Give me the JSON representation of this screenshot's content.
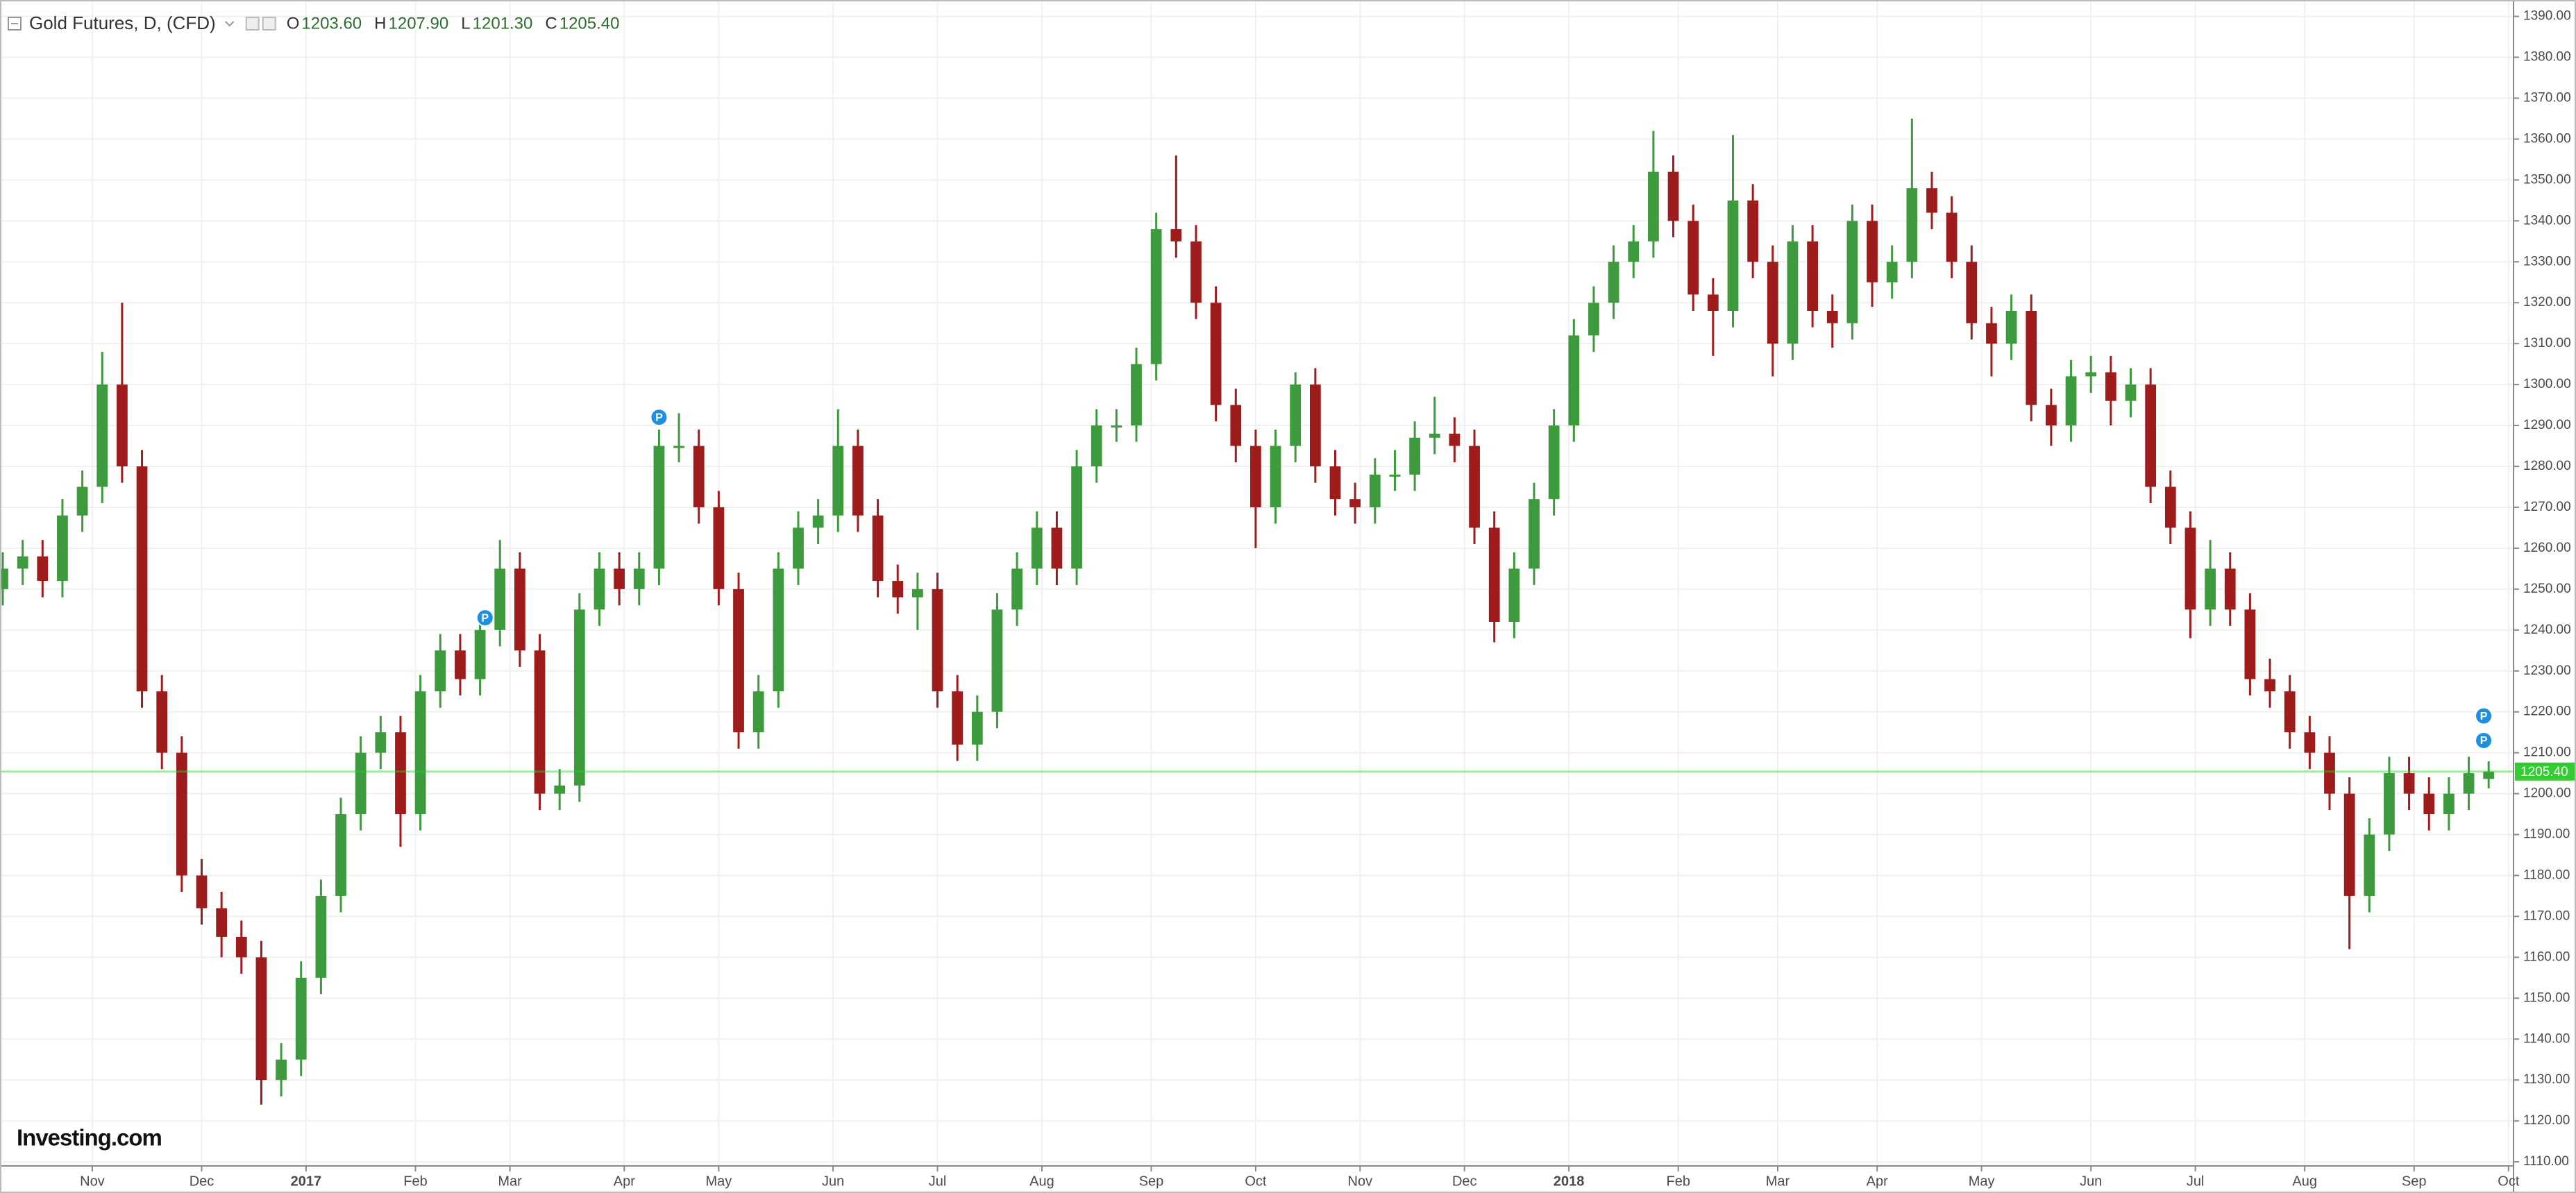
{
  "chart_data": {
    "type": "candlestick",
    "title": "Gold Futures, D, (CFD)",
    "legend_values": [
      {
        "key": "O",
        "value": 1203.6,
        "label": "1203.60"
      },
      {
        "key": "H",
        "value": 1207.9,
        "label": "1207.90"
      },
      {
        "key": "L",
        "value": 1201.3,
        "label": "1201.30"
      },
      {
        "key": "C",
        "value": 1205.4,
        "label": "1205.40"
      }
    ],
    "logo": "Investing.com",
    "up_color": "#3d9a3d",
    "down_color": "#9e1c1c",
    "last_price_color": "#33cc33",
    "last_price": {
      "value": 1205.4,
      "label": "1205.40"
    },
    "grid": true,
    "xlim": [
      0,
      505
    ],
    "xticks": [
      {
        "value": 18,
        "label": "Nov"
      },
      {
        "value": 40,
        "label": "Dec"
      },
      {
        "value": 61,
        "label": "2017"
      },
      {
        "value": 83,
        "label": "Feb"
      },
      {
        "value": 102,
        "label": "Mar"
      },
      {
        "value": 125,
        "label": "Apr"
      },
      {
        "value": 144,
        "label": "May"
      },
      {
        "value": 167,
        "label": "Jun"
      },
      {
        "value": 188,
        "label": "Jul"
      },
      {
        "value": 209,
        "label": "Aug"
      },
      {
        "value": 231,
        "label": "Sep"
      },
      {
        "value": 252,
        "label": "Oct"
      },
      {
        "value": 273,
        "label": "Nov"
      },
      {
        "value": 294,
        "label": "Dec"
      },
      {
        "value": 315,
        "label": "2018"
      },
      {
        "value": 337,
        "label": "Feb"
      },
      {
        "value": 357,
        "label": "Mar"
      },
      {
        "value": 377,
        "label": "Apr"
      },
      {
        "value": 398,
        "label": "May"
      },
      {
        "value": 420,
        "label": "Jun"
      },
      {
        "value": 441,
        "label": "Jul"
      },
      {
        "value": 463,
        "label": "Aug"
      },
      {
        "value": 485,
        "label": "Sep"
      },
      {
        "value": 504,
        "label": "Oct"
      }
    ],
    "ylim": [
      1109,
      1394
    ],
    "yticks": [
      {
        "value": 1110,
        "label": "1110.00"
      },
      {
        "value": 1120,
        "label": "1120.00"
      },
      {
        "value": 1130,
        "label": "1130.00"
      },
      {
        "value": 1140,
        "label": "1140.00"
      },
      {
        "value": 1150,
        "label": "1150.00"
      },
      {
        "value": 1160,
        "label": "1160.00"
      },
      {
        "value": 1170,
        "label": "1170.00"
      },
      {
        "value": 1180,
        "label": "1180.00"
      },
      {
        "value": 1190,
        "label": "1190.00"
      },
      {
        "value": 1200,
        "label": "1200.00"
      },
      {
        "value": 1210,
        "label": "1210.00"
      },
      {
        "value": 1220,
        "label": "1220.00"
      },
      {
        "value": 1230,
        "label": "1230.00"
      },
      {
        "value": 1240,
        "label": "1240.00"
      },
      {
        "value": 1250,
        "label": "1250.00"
      },
      {
        "value": 1260,
        "label": "1260.00"
      },
      {
        "value": 1270,
        "label": "1270.00"
      },
      {
        "value": 1280,
        "label": "1280.00"
      },
      {
        "value": 1290,
        "label": "1290.00"
      },
      {
        "value": 1300,
        "label": "1300.00"
      },
      {
        "value": 1310,
        "label": "1310.00"
      },
      {
        "value": 1320,
        "label": "1320.00"
      },
      {
        "value": 1330,
        "label": "1330.00"
      },
      {
        "value": 1340,
        "label": "1340.00"
      },
      {
        "value": 1350,
        "label": "1350.00"
      },
      {
        "value": 1360,
        "label": "1360.00"
      },
      {
        "value": 1370,
        "label": "1370.00"
      },
      {
        "value": 1380,
        "label": "1380.00"
      },
      {
        "value": 1390,
        "label": "1390.00"
      }
    ],
    "markers": [
      {
        "x": 97,
        "y": 1243,
        "label": "P"
      },
      {
        "x": 132,
        "y": 1292,
        "label": "P"
      },
      {
        "x": 499,
        "y": 1219,
        "label": "P"
      },
      {
        "x": 499,
        "y": 1213,
        "label": "P"
      }
    ],
    "x": [
      0,
      4,
      8,
      12,
      16,
      20,
      24,
      28,
      32,
      36,
      40,
      44,
      48,
      52,
      56,
      60,
      64,
      68,
      72,
      76,
      80,
      84,
      88,
      92,
      96,
      100,
      104,
      108,
      112,
      116,
      120,
      124,
      128,
      132,
      136,
      140,
      144,
      148,
      152,
      156,
      160,
      164,
      168,
      172,
      176,
      180,
      184,
      188,
      192,
      196,
      200,
      204,
      208,
      212,
      216,
      220,
      224,
      228,
      232,
      236,
      240,
      244,
      248,
      252,
      256,
      260,
      264,
      268,
      272,
      276,
      280,
      284,
      288,
      292,
      296,
      300,
      304,
      308,
      312,
      316,
      320,
      324,
      328,
      332,
      336,
      340,
      344,
      348,
      352,
      356,
      360,
      364,
      368,
      372,
      376,
      380,
      384,
      388,
      392,
      396,
      400,
      404,
      408,
      412,
      416,
      420,
      424,
      428,
      432,
      436,
      440,
      444,
      448,
      452,
      456,
      460,
      464,
      468,
      472,
      476,
      480,
      484,
      488,
      492,
      496,
      500
    ],
    "open": [
      1250,
      1255,
      1258,
      1252,
      1268,
      1275,
      1300,
      1280,
      1225,
      1210,
      1180,
      1172,
      1165,
      1160,
      1130,
      1135,
      1155,
      1175,
      1195,
      1210,
      1215,
      1195,
      1225,
      1235,
      1228,
      1240,
      1255,
      1235,
      1200,
      1202,
      1245,
      1255,
      1250,
      1255,
      1285,
      1285,
      1270,
      1250,
      1215,
      1225,
      1255,
      1265,
      1268,
      1285,
      1268,
      1252,
      1248,
      1250,
      1225,
      1212,
      1220,
      1245,
      1255,
      1265,
      1255,
      1280,
      1290,
      1290,
      1305,
      1338,
      1335,
      1320,
      1295,
      1285,
      1270,
      1285,
      1300,
      1280,
      1272,
      1270,
      1278,
      1278,
      1287,
      1288,
      1285,
      1265,
      1242,
      1255,
      1272,
      1290,
      1312,
      1320,
      1330,
      1335,
      1352,
      1340,
      1322,
      1318,
      1345,
      1330,
      1310,
      1335,
      1318,
      1315,
      1340,
      1325,
      1330,
      1348,
      1342,
      1330,
      1315,
      1310,
      1318,
      1295,
      1290,
      1302,
      1303,
      1296,
      1300,
      1275,
      1265,
      1245,
      1255,
      1245,
      1228,
      1225,
      1215,
      1210,
      1200,
      1175,
      1190,
      1205,
      1200,
      1195,
      1200,
      1203.6
    ],
    "high": [
      1259,
      1262,
      1262,
      1272,
      1279,
      1308,
      1320,
      1284,
      1229,
      1214,
      1184,
      1176,
      1169,
      1164,
      1139,
      1159,
      1179,
      1199,
      1214,
      1219,
      1219,
      1229,
      1239,
      1239,
      1244,
      1262,
      1259,
      1239,
      1206,
      1249,
      1259,
      1259,
      1259,
      1289,
      1293,
      1289,
      1274,
      1254,
      1229,
      1259,
      1269,
      1272,
      1294,
      1289,
      1272,
      1256,
      1254,
      1254,
      1229,
      1224,
      1249,
      1259,
      1269,
      1269,
      1284,
      1294,
      1294,
      1309,
      1342,
      1356,
      1339,
      1324,
      1299,
      1289,
      1289,
      1303,
      1304,
      1284,
      1276,
      1282,
      1284,
      1291,
      1297,
      1292,
      1289,
      1269,
      1259,
      1276,
      1294,
      1316,
      1324,
      1334,
      1339,
      1362,
      1356,
      1344,
      1326,
      1361,
      1349,
      1334,
      1339,
      1339,
      1322,
      1344,
      1344,
      1334,
      1365,
      1352,
      1346,
      1334,
      1319,
      1322,
      1322,
      1299,
      1306,
      1307,
      1307,
      1304,
      1304,
      1279,
      1269,
      1262,
      1259,
      1249,
      1233,
      1229,
      1219,
      1214,
      1204,
      1194,
      1209,
      1209,
      1204,
      1204,
      1209,
      1207.9
    ],
    "low": [
      1246,
      1251,
      1248,
      1248,
      1264,
      1271,
      1276,
      1221,
      1206,
      1176,
      1168,
      1160,
      1156,
      1124,
      1126,
      1131,
      1151,
      1171,
      1191,
      1206,
      1187,
      1191,
      1221,
      1224,
      1224,
      1236,
      1231,
      1196,
      1196,
      1198,
      1241,
      1246,
      1246,
      1251,
      1281,
      1266,
      1246,
      1211,
      1211,
      1221,
      1251,
      1261,
      1264,
      1264,
      1248,
      1244,
      1240,
      1221,
      1208,
      1208,
      1216,
      1241,
      1251,
      1251,
      1251,
      1276,
      1286,
      1286,
      1301,
      1331,
      1316,
      1291,
      1281,
      1260,
      1266,
      1281,
      1276,
      1268,
      1266,
      1266,
      1274,
      1274,
      1283,
      1281,
      1261,
      1237,
      1238,
      1251,
      1268,
      1286,
      1308,
      1316,
      1326,
      1331,
      1336,
      1318,
      1307,
      1314,
      1326,
      1302,
      1306,
      1314,
      1309,
      1311,
      1319,
      1321,
      1326,
      1338,
      1326,
      1311,
      1302,
      1306,
      1291,
      1285,
      1286,
      1298,
      1290,
      1292,
      1271,
      1261,
      1238,
      1241,
      1241,
      1224,
      1221,
      1211,
      1206,
      1196,
      1162,
      1171,
      1186,
      1196,
      1191,
      1191,
      1196,
      1201.3
    ],
    "close": [
      1255,
      1258,
      1252,
      1268,
      1275,
      1300,
      1280,
      1225,
      1210,
      1180,
      1172,
      1165,
      1160,
      1130,
      1135,
      1155,
      1175,
      1195,
      1210,
      1215,
      1195,
      1225,
      1235,
      1228,
      1240,
      1255,
      1235,
      1200,
      1202,
      1245,
      1255,
      1250,
      1255,
      1285,
      1285,
      1270,
      1250,
      1215,
      1225,
      1255,
      1265,
      1268,
      1285,
      1268,
      1252,
      1248,
      1250,
      1225,
      1212,
      1220,
      1245,
      1255,
      1265,
      1255,
      1280,
      1290,
      1290,
      1305,
      1338,
      1335,
      1320,
      1295,
      1285,
      1270,
      1285,
      1300,
      1280,
      1272,
      1270,
      1278,
      1278,
      1287,
      1288,
      1285,
      1265,
      1242,
      1255,
      1272,
      1290,
      1312,
      1320,
      1330,
      1335,
      1352,
      1340,
      1322,
      1318,
      1345,
      1330,
      1310,
      1335,
      1318,
      1315,
      1340,
      1325,
      1330,
      1348,
      1342,
      1330,
      1315,
      1310,
      1318,
      1295,
      1290,
      1302,
      1303,
      1296,
      1300,
      1275,
      1265,
      1245,
      1255,
      1245,
      1228,
      1225,
      1215,
      1210,
      1200,
      1175,
      1190,
      1205,
      1200,
      1195,
      1200,
      1205,
      1205.4
    ]
  }
}
